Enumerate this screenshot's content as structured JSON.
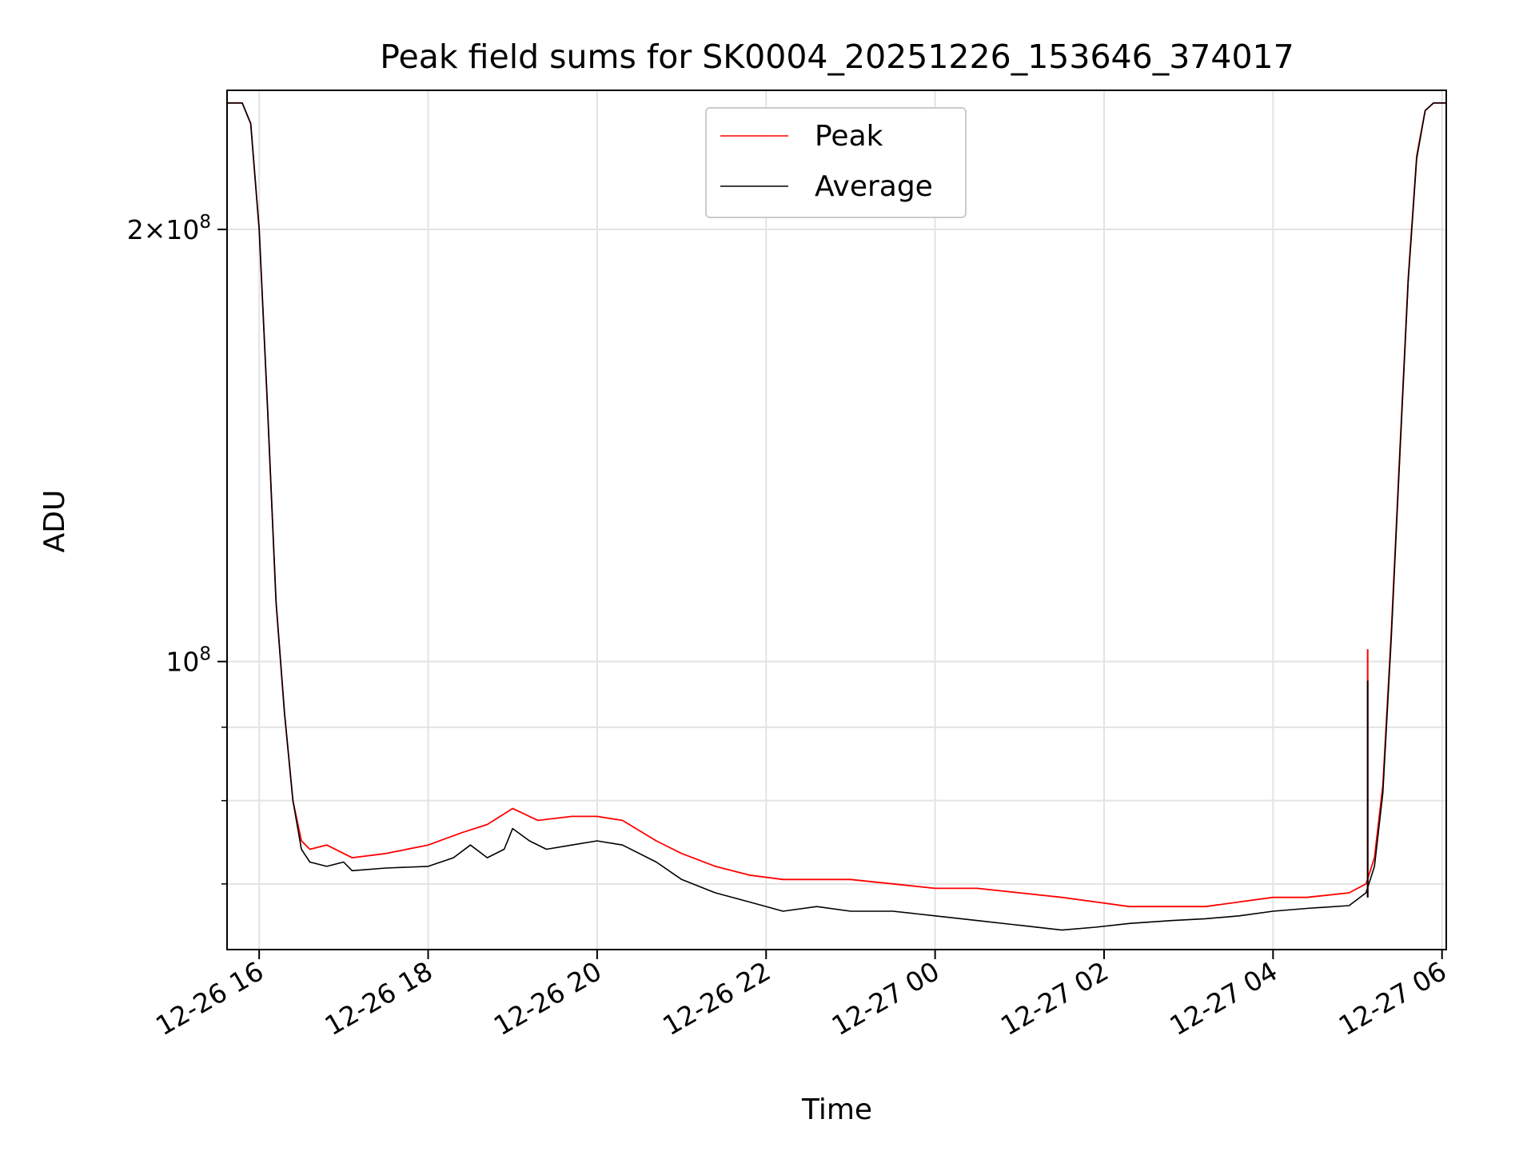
{
  "chart_data": {
    "type": "line",
    "title": "Peak field sums for SK0004_20251226_153646_374017",
    "xlabel": "Time",
    "ylabel": "ADU",
    "yscale": "log",
    "grid": true,
    "legend_position": "top-center",
    "xlim_hours": [
      15.62,
      30.05
    ],
    "ylim": [
      63000000,
      250000000
    ],
    "x_ticks": [
      {
        "hours": 16,
        "label": "12-26 16"
      },
      {
        "hours": 18,
        "label": "12-26 18"
      },
      {
        "hours": 20,
        "label": "12-26 20"
      },
      {
        "hours": 22,
        "label": "12-26 22"
      },
      {
        "hours": 24,
        "label": "12-27 00"
      },
      {
        "hours": 26,
        "label": "12-27 02"
      },
      {
        "hours": 28,
        "label": "12-27 04"
      },
      {
        "hours": 30,
        "label": "12-27 06"
      }
    ],
    "y_major_ticks": [
      {
        "value": 100000000,
        "base": "10",
        "exp": "8"
      },
      {
        "value": 200000000,
        "mant": "2",
        "base": "10",
        "exp": "8"
      }
    ],
    "y_minor_ticks": [
      70000000,
      80000000,
      90000000
    ],
    "series": [
      {
        "name": "Peak",
        "color": "#ff0000",
        "points": [
          [
            15.62,
            245000000
          ],
          [
            15.8,
            245000000
          ],
          [
            15.9,
            237000000
          ],
          [
            16.0,
            200000000
          ],
          [
            16.1,
            150000000
          ],
          [
            16.2,
            110000000
          ],
          [
            16.3,
            92000000
          ],
          [
            16.4,
            80000000
          ],
          [
            16.5,
            75000000
          ],
          [
            16.6,
            74000000
          ],
          [
            16.8,
            74500000
          ],
          [
            17.1,
            73000000
          ],
          [
            17.5,
            73500000
          ],
          [
            18.0,
            74500000
          ],
          [
            18.4,
            76000000
          ],
          [
            18.7,
            77000000
          ],
          [
            19.0,
            79000000
          ],
          [
            19.3,
            77500000
          ],
          [
            19.7,
            78000000
          ],
          [
            20.0,
            78000000
          ],
          [
            20.3,
            77500000
          ],
          [
            20.7,
            75000000
          ],
          [
            21.0,
            73500000
          ],
          [
            21.4,
            72000000
          ],
          [
            21.8,
            71000000
          ],
          [
            22.2,
            70500000
          ],
          [
            22.6,
            70500000
          ],
          [
            23.0,
            70500000
          ],
          [
            23.5,
            70000000
          ],
          [
            24.0,
            69500000
          ],
          [
            24.5,
            69500000
          ],
          [
            25.0,
            69000000
          ],
          [
            25.5,
            68500000
          ],
          [
            25.9,
            68000000
          ],
          [
            26.3,
            67500000
          ],
          [
            26.8,
            67500000
          ],
          [
            27.2,
            67500000
          ],
          [
            27.6,
            68000000
          ],
          [
            28.0,
            68500000
          ],
          [
            28.4,
            68500000
          ],
          [
            28.9,
            69000000
          ],
          [
            29.1,
            70000000
          ],
          [
            29.2,
            73000000
          ],
          [
            29.3,
            82000000
          ],
          [
            29.4,
            105000000
          ],
          [
            29.5,
            140000000
          ],
          [
            29.6,
            185000000
          ],
          [
            29.7,
            225000000
          ],
          [
            29.8,
            242000000
          ],
          [
            29.9,
            245000000
          ],
          [
            30.05,
            245000000
          ]
        ]
      },
      {
        "name": "Average",
        "color": "#000000",
        "points": [
          [
            15.62,
            245000000
          ],
          [
            15.8,
            245000000
          ],
          [
            15.9,
            237000000
          ],
          [
            16.0,
            200000000
          ],
          [
            16.1,
            150000000
          ],
          [
            16.2,
            110000000
          ],
          [
            16.3,
            92000000
          ],
          [
            16.4,
            80000000
          ],
          [
            16.5,
            74000000
          ],
          [
            16.6,
            72500000
          ],
          [
            16.8,
            72000000
          ],
          [
            17.0,
            72500000
          ],
          [
            17.1,
            71500000
          ],
          [
            17.5,
            71800000
          ],
          [
            18.0,
            72000000
          ],
          [
            18.3,
            73000000
          ],
          [
            18.5,
            74500000
          ],
          [
            18.7,
            73000000
          ],
          [
            18.9,
            74000000
          ],
          [
            19.0,
            76500000
          ],
          [
            19.2,
            75000000
          ],
          [
            19.4,
            74000000
          ],
          [
            19.7,
            74500000
          ],
          [
            20.0,
            75000000
          ],
          [
            20.3,
            74500000
          ],
          [
            20.7,
            72500000
          ],
          [
            21.0,
            70500000
          ],
          [
            21.4,
            69000000
          ],
          [
            21.8,
            68000000
          ],
          [
            22.2,
            67000000
          ],
          [
            22.6,
            67500000
          ],
          [
            23.0,
            67000000
          ],
          [
            23.5,
            67000000
          ],
          [
            24.0,
            66500000
          ],
          [
            24.5,
            66000000
          ],
          [
            25.0,
            65500000
          ],
          [
            25.5,
            65000000
          ],
          [
            25.9,
            65300000
          ],
          [
            26.3,
            65700000
          ],
          [
            26.8,
            66000000
          ],
          [
            27.2,
            66200000
          ],
          [
            27.6,
            66500000
          ],
          [
            28.0,
            67000000
          ],
          [
            28.4,
            67300000
          ],
          [
            28.9,
            67600000
          ],
          [
            29.1,
            69000000
          ],
          [
            29.2,
            72000000
          ],
          [
            29.3,
            81000000
          ],
          [
            29.4,
            104000000
          ],
          [
            29.5,
            139000000
          ],
          [
            29.6,
            184000000
          ],
          [
            29.7,
            224000000
          ],
          [
            29.8,
            242000000
          ],
          [
            29.9,
            245000000
          ],
          [
            30.05,
            245000000
          ]
        ]
      }
    ],
    "annotations": [
      {
        "series": "Peak",
        "hours": 29.12,
        "value": 102000000,
        "note": "single spike"
      },
      {
        "series": "Average",
        "hours": 29.12,
        "value": 97000000,
        "note": "single spike"
      }
    ]
  }
}
